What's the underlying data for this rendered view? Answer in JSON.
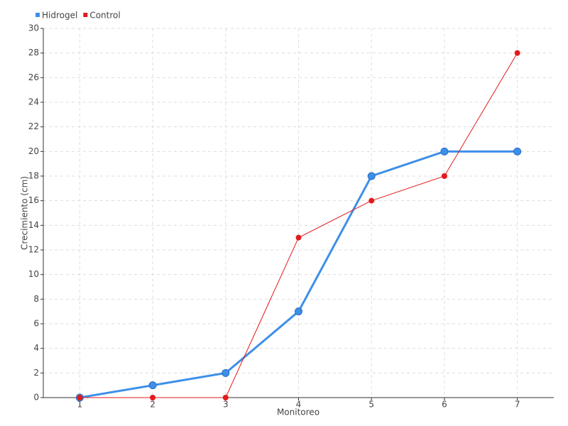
{
  "chart_data": {
    "type": "line",
    "x_label": "Monitoreo",
    "y_label": "Crecimiento (cm)",
    "categories": [
      "1",
      "2",
      "3",
      "4",
      "5",
      "6",
      "7"
    ],
    "series": [
      {
        "name": "Hidrogel",
        "color": "#3d8fe8",
        "values": [
          0,
          1,
          2,
          7,
          18,
          20,
          20
        ]
      },
      {
        "name": "Control",
        "color": "#e31a1c",
        "values": [
          0,
          0,
          0,
          13,
          16,
          18,
          28
        ]
      }
    ],
    "ylim": [
      0,
      30
    ],
    "yticks": [
      0,
      2,
      4,
      6,
      8,
      10,
      12,
      14,
      16,
      18,
      20,
      22,
      24,
      26,
      28,
      30
    ],
    "grid": true,
    "legend": "top-left"
  }
}
